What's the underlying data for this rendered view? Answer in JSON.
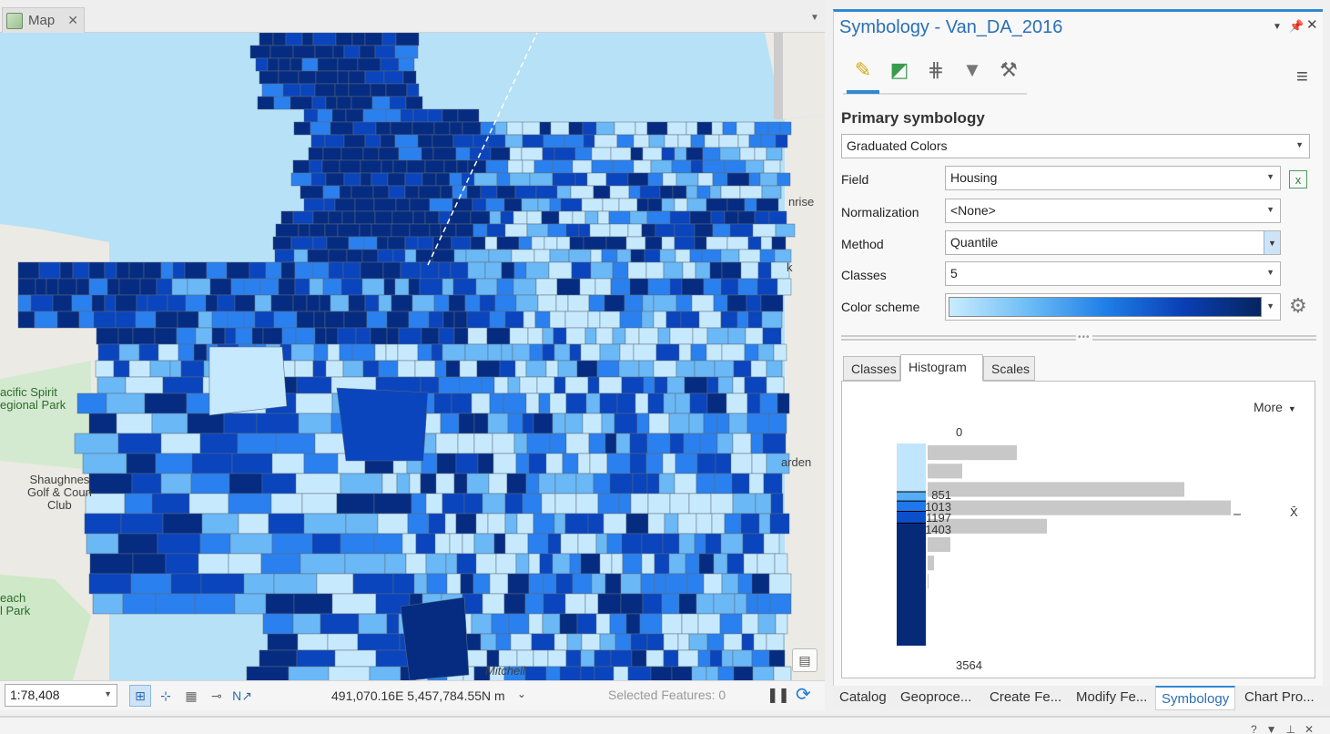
{
  "map_tab": {
    "label": "Map",
    "close": "✕"
  },
  "map": {
    "labels": {
      "sunrise": "nrise",
      "k": "k",
      "gardens": "arden",
      "pacific_spirit": "acific Spirit\negional Park",
      "shaughnessy": "Shaughnes\nGolf & Coun\nClub",
      "beach_park": "each\nl Park",
      "mitchell": "Mitchell"
    },
    "colors": [
      "#c6e9fd",
      "#6ab8f6",
      "#2a80ee",
      "#0a45be",
      "#062c82"
    ],
    "water": "#b6e1f7",
    "land": "#eceae4"
  },
  "status_bar": {
    "scale": "1:78,408",
    "coordinates": "491,070.16E 5,457,784.55N m",
    "selected_features": "Selected Features: 0"
  },
  "symbology": {
    "title": "Symbology - Van_DA_2016",
    "primary_heading": "Primary symbology",
    "renderer": "Graduated Colors",
    "field_label": "Field",
    "field_value": "Housing",
    "normalization_label": "Normalization",
    "normalization_value": "<None>",
    "method_label": "Method",
    "method_value": "Quantile",
    "classes_label": "Classes",
    "classes_value": "5",
    "color_scheme_label": "Color scheme",
    "subtabs": {
      "classes": "Classes",
      "histogram": "Histogram",
      "scales": "Scales"
    },
    "histogram": {
      "more": "More",
      "min": "0",
      "max": "3564",
      "mean_symbol": "X̄",
      "breaks": [
        "851",
        "1013",
        "1197",
        "1403"
      ],
      "bin_counts": [
        98,
        38,
        282,
        333,
        131,
        25,
        7,
        1,
        0,
        0,
        0
      ],
      "class_colors": [
        "#bfe6fd",
        "#55aef5",
        "#1e78ec",
        "#0c4fcb",
        "#062a78"
      ]
    }
  },
  "bottom_tabs": [
    "Catalog",
    "Geoproce...",
    "Create Fe...",
    "Modify Fe...",
    "Symbology",
    "Chart Pro..."
  ]
}
